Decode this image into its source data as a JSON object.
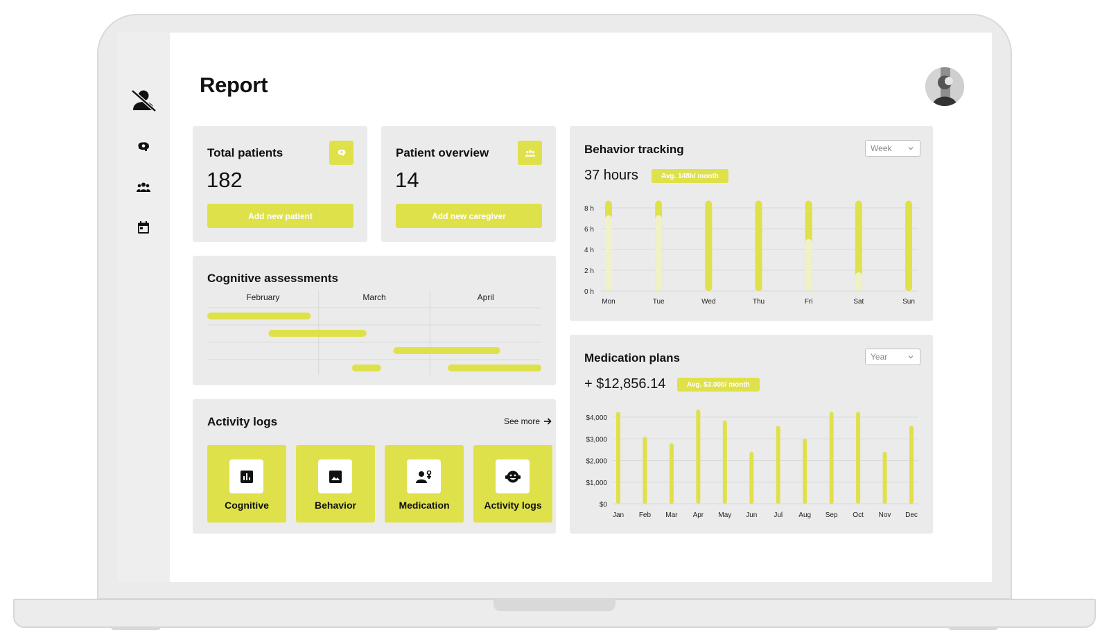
{
  "page": {
    "title": "Report"
  },
  "sidebar": {
    "items": [
      {
        "icon": "user-off-icon"
      },
      {
        "icon": "brain-icon"
      },
      {
        "icon": "group-icon"
      },
      {
        "icon": "calendar-icon"
      }
    ]
  },
  "total_patients": {
    "title": "Total patients",
    "value": "182",
    "button": "Add new patient",
    "icon": "brain-icon"
  },
  "patient_overview": {
    "title": "Patient overview",
    "value": "14",
    "button": "Add new caregiver",
    "icon": "group-icon"
  },
  "cognitive": {
    "title": "Cognitive assessments",
    "months": [
      "February",
      "March",
      "April"
    ],
    "bars": [
      {
        "row": 0,
        "start": 0.0,
        "end": 0.93
      },
      {
        "row": 1,
        "start": 0.55,
        "end": 1.43
      },
      {
        "row": 2,
        "start": 1.67,
        "end": 2.63
      },
      {
        "row": 3,
        "start": 1.3,
        "end": 1.56
      },
      {
        "row": 3,
        "start": 2.16,
        "end": 3.0
      }
    ]
  },
  "activity": {
    "title": "Activity logs",
    "see_more": "See more",
    "tiles": [
      {
        "label": "Cognitive",
        "icon": "bar-chart-icon"
      },
      {
        "label": "Behavior",
        "icon": "image-icon"
      },
      {
        "label": "Medication",
        "icon": "person-pill-icon"
      },
      {
        "label": "Activity logs",
        "icon": "smile-icon"
      }
    ]
  },
  "behavior": {
    "title": "Behavior tracking",
    "select": "Week",
    "value": "37 hours",
    "avg": "Avg. 148h/ month",
    "chart_data": {
      "type": "bar",
      "categories": [
        "Mon",
        "Tue",
        "Wed",
        "Thu",
        "Fri",
        "Sat",
        "Sun"
      ],
      "y_ticks": [
        "8 h",
        "6 h",
        "4 h",
        "2 h",
        "0 h"
      ],
      "ylim": [
        0,
        8
      ],
      "series": [
        {
          "values": [
            8.7,
            8.7,
            8.7,
            8.7,
            8.7,
            8.7,
            8.7
          ]
        },
        {
          "values": [
            7.3,
            7.3,
            0,
            0,
            5.0,
            1.8,
            0
          ]
        }
      ],
      "colors": [
        "#dfe14a",
        "#f1f1c6"
      ]
    }
  },
  "medication": {
    "title": "Medication plans",
    "select": "Year",
    "value": "+ $12,856.14",
    "avg": "Avg. $3.000/ month",
    "chart_data": {
      "type": "bar",
      "categories": [
        "Jan",
        "Feb",
        "Mar",
        "Apr",
        "May",
        "Jun",
        "Jul",
        "Aug",
        "Sep",
        "Oct",
        "Nov",
        "Dec"
      ],
      "y_ticks": [
        "$4,000",
        "$3,000",
        "$2,000",
        "$1,000",
        "$0"
      ],
      "ylim": [
        0,
        4000
      ],
      "values": [
        4250,
        3100,
        2800,
        4350,
        3850,
        2400,
        3600,
        3000,
        4250,
        4250,
        2400,
        3600
      ],
      "color": "#dfe14a"
    }
  }
}
